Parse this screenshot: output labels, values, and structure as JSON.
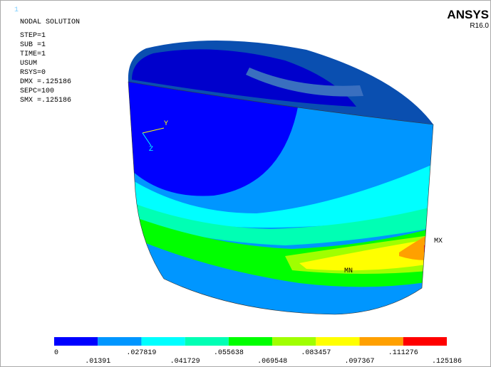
{
  "window_number": "1",
  "info": [
    "NODAL SOLUTION",
    "STEP=1",
    "SUB =1",
    "TIME=1",
    "USUM",
    "RSYS=0",
    "DMX =.125186",
    "SEPC=100",
    "SMX =.125186"
  ],
  "brand": {
    "name": "ANSYS",
    "version": "R16.0"
  },
  "model_labels": {
    "mx": "MX",
    "mn": "MN",
    "axis_y": "Y",
    "axis_z": "Z"
  },
  "legend": {
    "colors": [
      "#0000ff",
      "#0096ff",
      "#00ffff",
      "#00ffb4",
      "#00ff00",
      "#a0ff00",
      "#ffff00",
      "#ffa000",
      "#ff0000"
    ],
    "labels": [
      "0",
      ".01391",
      ".027819",
      ".041729",
      ".055638",
      ".069548",
      ".083457",
      ".097367",
      ".111276",
      ".125186"
    ]
  }
}
